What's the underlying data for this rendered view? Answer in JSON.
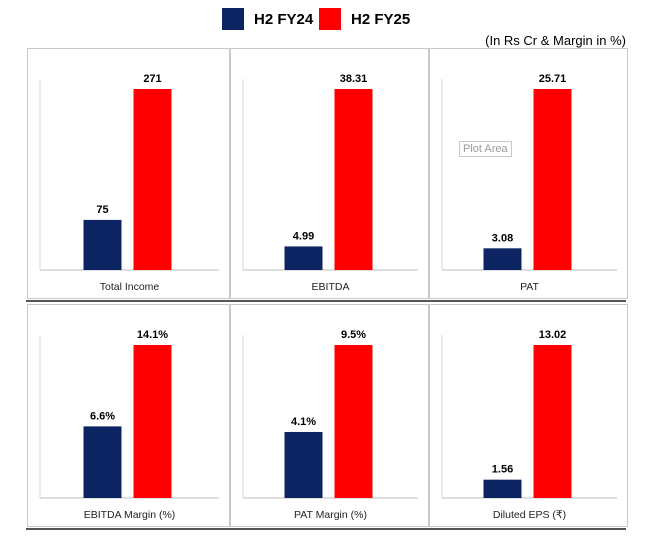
{
  "legend": [
    {
      "name": "H2 FY24",
      "color": "#0c2461"
    },
    {
      "name": "H2 FY25",
      "color": "#ff0000"
    }
  ],
  "unit_note": "(In Rs Cr & Margin in %)",
  "plot_area_tooltip": "Plot Area",
  "chart_data": [
    {
      "type": "bar",
      "categories": [
        "H2 FY24",
        "H2 FY25"
      ],
      "values": [
        75,
        271
      ],
      "labels": [
        "75",
        "271"
      ],
      "xlabel": "Total Income"
    },
    {
      "type": "bar",
      "categories": [
        "H2 FY24",
        "H2 FY25"
      ],
      "values": [
        4.99,
        38.31
      ],
      "labels": [
        "4.99",
        "38.31"
      ],
      "xlabel": "EBITDA"
    },
    {
      "type": "bar",
      "categories": [
        "H2 FY24",
        "H2 FY25"
      ],
      "values": [
        3.08,
        25.71
      ],
      "labels": [
        "3.08",
        "25.71"
      ],
      "xlabel": "PAT"
    },
    {
      "type": "bar",
      "categories": [
        "H2 FY24",
        "H2 FY25"
      ],
      "values": [
        6.6,
        14.1
      ],
      "labels": [
        "6.6%",
        "14.1%"
      ],
      "xlabel": "EBITDA Margin (%)"
    },
    {
      "type": "bar",
      "categories": [
        "H2 FY24",
        "H2 FY25"
      ],
      "values": [
        4.1,
        9.5
      ],
      "labels": [
        "4.1%",
        "9.5%"
      ],
      "xlabel": "PAT Margin (%)"
    },
    {
      "type": "bar",
      "categories": [
        "H2 FY24",
        "H2 FY25"
      ],
      "values": [
        1.56,
        13.02
      ],
      "labels": [
        "1.56",
        "13.02"
      ],
      "xlabel": "Diluted EPS (₹)"
    }
  ]
}
